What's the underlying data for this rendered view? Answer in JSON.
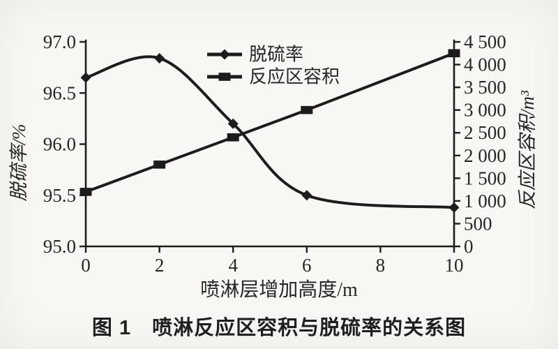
{
  "figure": {
    "caption": "图 1　喷淋反应区容积与脱硫率的关系图",
    "x_axis_label": "喷淋层增加高度/m",
    "left_axis_label": "脱硫率/%",
    "right_axis_label": "反应区容积/m³"
  },
  "legend": {
    "items": [
      {
        "label": "脱硫率",
        "marker": "diamond"
      },
      {
        "label": "反应区容积",
        "marker": "square"
      }
    ]
  },
  "chart_data": {
    "type": "line",
    "title": "图 1 喷淋反应区容积与脱硫率的关系图",
    "xlabel": "喷淋层增加高度/m",
    "ylabel_left": "脱硫率/%",
    "ylabel_right": "反应区容积/m³",
    "x": [
      0,
      2,
      4,
      6,
      10
    ],
    "series": [
      {
        "name": "脱硫率",
        "axis": "left",
        "marker": "diamond",
        "smooth": true,
        "values": [
          96.65,
          96.84,
          96.2,
          95.5,
          95.38
        ]
      },
      {
        "name": "反应区容积",
        "axis": "right",
        "marker": "square",
        "smooth": false,
        "values": [
          1200,
          1800,
          2400,
          3000,
          4250
        ]
      }
    ],
    "x_axis": {
      "min": 0,
      "max": 10,
      "tick_values": [
        0,
        2,
        4,
        6,
        8,
        10
      ],
      "tick_labels": [
        "0",
        "2",
        "4",
        "6",
        "8",
        "10"
      ]
    },
    "left_axis": {
      "min": 95.0,
      "max": 97.0,
      "tick_values": [
        95.0,
        95.5,
        96.0,
        96.5,
        97.0
      ],
      "tick_labels": [
        "95.0",
        "95.5",
        "96.0",
        "96.5",
        "97.0"
      ]
    },
    "right_axis": {
      "min": 0,
      "max": 4500,
      "tick_values": [
        0,
        500,
        1000,
        1500,
        2000,
        2500,
        3000,
        3500,
        4000,
        4500
      ],
      "tick_labels": [
        "0",
        "500",
        "1 000",
        "1 500",
        "2 000",
        "2 500",
        "3 000",
        "3 500",
        "4 000",
        "4 500"
      ]
    },
    "grid": false,
    "legend_position": "inside-top-center"
  },
  "colors": {
    "background": "#f8f7f4",
    "ink": "#1c1c1c",
    "text": "#262626"
  }
}
